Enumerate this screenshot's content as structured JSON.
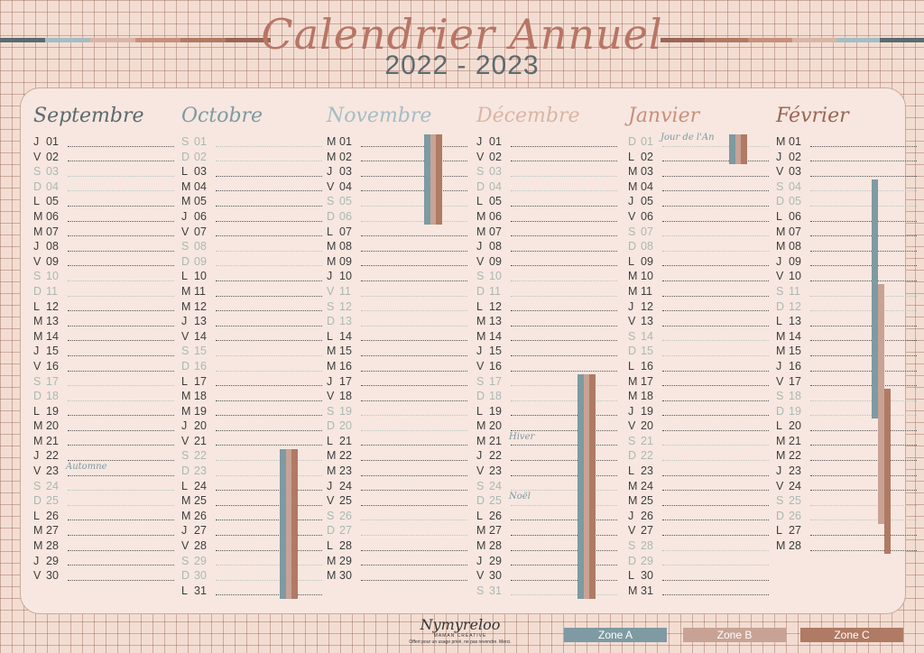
{
  "title": "Calendrier Annuel",
  "year": "2022 - 2023",
  "colors": {
    "zone_a": "#7e9aa2",
    "zone_b": "#c8a395",
    "zone_c": "#b07a64",
    "weekend": "#a9b9b3"
  },
  "months": [
    {
      "name": "Septembre",
      "color": "#5c6a70",
      "days": [
        {
          "l": "J",
          "n": "01"
        },
        {
          "l": "V",
          "n": "02"
        },
        {
          "l": "S",
          "n": "03",
          "w": true
        },
        {
          "l": "D",
          "n": "04",
          "w": true
        },
        {
          "l": "L",
          "n": "05"
        },
        {
          "l": "M",
          "n": "06"
        },
        {
          "l": "M",
          "n": "07"
        },
        {
          "l": "J",
          "n": "08"
        },
        {
          "l": "V",
          "n": "09"
        },
        {
          "l": "S",
          "n": "10",
          "w": true
        },
        {
          "l": "D",
          "n": "11",
          "w": true
        },
        {
          "l": "L",
          "n": "12"
        },
        {
          "l": "M",
          "n": "13"
        },
        {
          "l": "M",
          "n": "14"
        },
        {
          "l": "J",
          "n": "15"
        },
        {
          "l": "V",
          "n": "16"
        },
        {
          "l": "S",
          "n": "17",
          "w": true
        },
        {
          "l": "D",
          "n": "18",
          "w": true
        },
        {
          "l": "L",
          "n": "19"
        },
        {
          "l": "M",
          "n": "20"
        },
        {
          "l": "M",
          "n": "21"
        },
        {
          "l": "J",
          "n": "22"
        },
        {
          "l": "V",
          "n": "23",
          "note": "Automne"
        },
        {
          "l": "S",
          "n": "24",
          "w": true
        },
        {
          "l": "D",
          "n": "25",
          "w": true
        },
        {
          "l": "L",
          "n": "26"
        },
        {
          "l": "M",
          "n": "27"
        },
        {
          "l": "M",
          "n": "28"
        },
        {
          "l": "J",
          "n": "29"
        },
        {
          "l": "V",
          "n": "30"
        }
      ]
    },
    {
      "name": "Octobre",
      "color": "#7e9aa2",
      "days": [
        {
          "l": "S",
          "n": "01",
          "w": true
        },
        {
          "l": "D",
          "n": "02",
          "w": true
        },
        {
          "l": "L",
          "n": "03"
        },
        {
          "l": "M",
          "n": "04"
        },
        {
          "l": "M",
          "n": "05"
        },
        {
          "l": "J",
          "n": "06"
        },
        {
          "l": "V",
          "n": "07"
        },
        {
          "l": "S",
          "n": "08",
          "w": true
        },
        {
          "l": "D",
          "n": "09",
          "w": true
        },
        {
          "l": "L",
          "n": "10"
        },
        {
          "l": "M",
          "n": "11"
        },
        {
          "l": "M",
          "n": "12"
        },
        {
          "l": "J",
          "n": "13"
        },
        {
          "l": "V",
          "n": "14"
        },
        {
          "l": "S",
          "n": "15",
          "w": true
        },
        {
          "l": "D",
          "n": "16",
          "w": true
        },
        {
          "l": "L",
          "n": "17"
        },
        {
          "l": "M",
          "n": "18"
        },
        {
          "l": "M",
          "n": "19"
        },
        {
          "l": "J",
          "n": "20"
        },
        {
          "l": "V",
          "n": "21"
        },
        {
          "l": "S",
          "n": "22",
          "w": true
        },
        {
          "l": "D",
          "n": "23",
          "w": true
        },
        {
          "l": "L",
          "n": "24"
        },
        {
          "l": "M",
          "n": "25"
        },
        {
          "l": "M",
          "n": "26"
        },
        {
          "l": "J",
          "n": "27"
        },
        {
          "l": "V",
          "n": "28"
        },
        {
          "l": "S",
          "n": "29",
          "w": true
        },
        {
          "l": "D",
          "n": "30",
          "w": true
        },
        {
          "l": "L",
          "n": "31"
        }
      ]
    },
    {
      "name": "Novembre",
      "color": "#a6bcc4",
      "days": [
        {
          "l": "M",
          "n": "01",
          "holiday": true
        },
        {
          "l": "M",
          "n": "02"
        },
        {
          "l": "J",
          "n": "03"
        },
        {
          "l": "V",
          "n": "04"
        },
        {
          "l": "S",
          "n": "05",
          "w": true
        },
        {
          "l": "D",
          "n": "06",
          "w": true
        },
        {
          "l": "L",
          "n": "07"
        },
        {
          "l": "M",
          "n": "08"
        },
        {
          "l": "M",
          "n": "09"
        },
        {
          "l": "J",
          "n": "10"
        },
        {
          "l": "V",
          "n": "11",
          "w": true
        },
        {
          "l": "S",
          "n": "12",
          "w": true
        },
        {
          "l": "D",
          "n": "13",
          "w": true
        },
        {
          "l": "L",
          "n": "14"
        },
        {
          "l": "M",
          "n": "15"
        },
        {
          "l": "M",
          "n": "16"
        },
        {
          "l": "J",
          "n": "17"
        },
        {
          "l": "V",
          "n": "18"
        },
        {
          "l": "S",
          "n": "19",
          "w": true
        },
        {
          "l": "D",
          "n": "20",
          "w": true
        },
        {
          "l": "L",
          "n": "21"
        },
        {
          "l": "M",
          "n": "22"
        },
        {
          "l": "M",
          "n": "23"
        },
        {
          "l": "J",
          "n": "24"
        },
        {
          "l": "V",
          "n": "25"
        },
        {
          "l": "S",
          "n": "26",
          "w": true
        },
        {
          "l": "D",
          "n": "27",
          "w": true
        },
        {
          "l": "L",
          "n": "28"
        },
        {
          "l": "M",
          "n": "29"
        },
        {
          "l": "M",
          "n": "30"
        }
      ]
    },
    {
      "name": "Décembre",
      "color": "#d9b5a5",
      "days": [
        {
          "l": "J",
          "n": "01"
        },
        {
          "l": "V",
          "n": "02"
        },
        {
          "l": "S",
          "n": "03",
          "w": true
        },
        {
          "l": "D",
          "n": "04",
          "w": true
        },
        {
          "l": "L",
          "n": "05"
        },
        {
          "l": "M",
          "n": "06"
        },
        {
          "l": "M",
          "n": "07"
        },
        {
          "l": "J",
          "n": "08"
        },
        {
          "l": "V",
          "n": "09"
        },
        {
          "l": "S",
          "n": "10",
          "w": true
        },
        {
          "l": "D",
          "n": "11",
          "w": true
        },
        {
          "l": "L",
          "n": "12"
        },
        {
          "l": "M",
          "n": "13"
        },
        {
          "l": "M",
          "n": "14"
        },
        {
          "l": "J",
          "n": "15"
        },
        {
          "l": "V",
          "n": "16"
        },
        {
          "l": "S",
          "n": "17",
          "w": true
        },
        {
          "l": "D",
          "n": "18",
          "w": true
        },
        {
          "l": "L",
          "n": "19"
        },
        {
          "l": "M",
          "n": "20"
        },
        {
          "l": "M",
          "n": "21",
          "note": "Hiver"
        },
        {
          "l": "J",
          "n": "22"
        },
        {
          "l": "V",
          "n": "23"
        },
        {
          "l": "S",
          "n": "24",
          "w": true
        },
        {
          "l": "D",
          "n": "25",
          "w": true,
          "note": "Noël"
        },
        {
          "l": "L",
          "n": "26"
        },
        {
          "l": "M",
          "n": "27"
        },
        {
          "l": "M",
          "n": "28"
        },
        {
          "l": "J",
          "n": "29"
        },
        {
          "l": "V",
          "n": "30"
        },
        {
          "l": "S",
          "n": "31",
          "w": true
        }
      ]
    },
    {
      "name": "Janvier",
      "color": "#c8907c",
      "days": [
        {
          "l": "D",
          "n": "01",
          "w": true,
          "note": "Jour de l'An"
        },
        {
          "l": "L",
          "n": "02"
        },
        {
          "l": "M",
          "n": "03"
        },
        {
          "l": "M",
          "n": "04"
        },
        {
          "l": "J",
          "n": "05"
        },
        {
          "l": "V",
          "n": "06"
        },
        {
          "l": "S",
          "n": "07",
          "w": true
        },
        {
          "l": "D",
          "n": "08",
          "w": true
        },
        {
          "l": "L",
          "n": "09"
        },
        {
          "l": "M",
          "n": "10"
        },
        {
          "l": "M",
          "n": "11"
        },
        {
          "l": "J",
          "n": "12"
        },
        {
          "l": "V",
          "n": "13"
        },
        {
          "l": "S",
          "n": "14",
          "w": true
        },
        {
          "l": "D",
          "n": "15",
          "w": true
        },
        {
          "l": "L",
          "n": "16"
        },
        {
          "l": "M",
          "n": "17"
        },
        {
          "l": "M",
          "n": "18"
        },
        {
          "l": "J",
          "n": "19"
        },
        {
          "l": "V",
          "n": "20"
        },
        {
          "l": "S",
          "n": "21",
          "w": true
        },
        {
          "l": "D",
          "n": "22",
          "w": true
        },
        {
          "l": "L",
          "n": "23"
        },
        {
          "l": "M",
          "n": "24"
        },
        {
          "l": "M",
          "n": "25"
        },
        {
          "l": "J",
          "n": "26"
        },
        {
          "l": "V",
          "n": "27"
        },
        {
          "l": "S",
          "n": "28",
          "w": true
        },
        {
          "l": "D",
          "n": "29",
          "w": true
        },
        {
          "l": "L",
          "n": "30"
        },
        {
          "l": "M",
          "n": "31"
        }
      ]
    },
    {
      "name": "Février",
      "color": "#9a6654",
      "days": [
        {
          "l": "M",
          "n": "01"
        },
        {
          "l": "J",
          "n": "02"
        },
        {
          "l": "V",
          "n": "03"
        },
        {
          "l": "S",
          "n": "04",
          "w": true
        },
        {
          "l": "D",
          "n": "05",
          "w": true
        },
        {
          "l": "L",
          "n": "06"
        },
        {
          "l": "M",
          "n": "07"
        },
        {
          "l": "M",
          "n": "08"
        },
        {
          "l": "J",
          "n": "09"
        },
        {
          "l": "V",
          "n": "10"
        },
        {
          "l": "S",
          "n": "11",
          "w": true
        },
        {
          "l": "D",
          "n": "12",
          "w": true
        },
        {
          "l": "L",
          "n": "13"
        },
        {
          "l": "M",
          "n": "14"
        },
        {
          "l": "M",
          "n": "15"
        },
        {
          "l": "J",
          "n": "16"
        },
        {
          "l": "V",
          "n": "17"
        },
        {
          "l": "S",
          "n": "18",
          "w": true
        },
        {
          "l": "D",
          "n": "19",
          "w": true
        },
        {
          "l": "L",
          "n": "20"
        },
        {
          "l": "M",
          "n": "21"
        },
        {
          "l": "M",
          "n": "22"
        },
        {
          "l": "J",
          "n": "23"
        },
        {
          "l": "V",
          "n": "24"
        },
        {
          "l": "S",
          "n": "25",
          "w": true
        },
        {
          "l": "D",
          "n": "26",
          "w": true
        },
        {
          "l": "L",
          "n": "27"
        },
        {
          "l": "M",
          "n": "28"
        }
      ]
    }
  ],
  "legend": [
    "Zone A",
    "Zone B",
    "Zone C"
  ],
  "logo": {
    "name": "Nymyreloo",
    "subtitle": "MAMAN CRÉATIVE",
    "tagline": "Offert pour un usage privé, ne pas revendre. Merci."
  }
}
